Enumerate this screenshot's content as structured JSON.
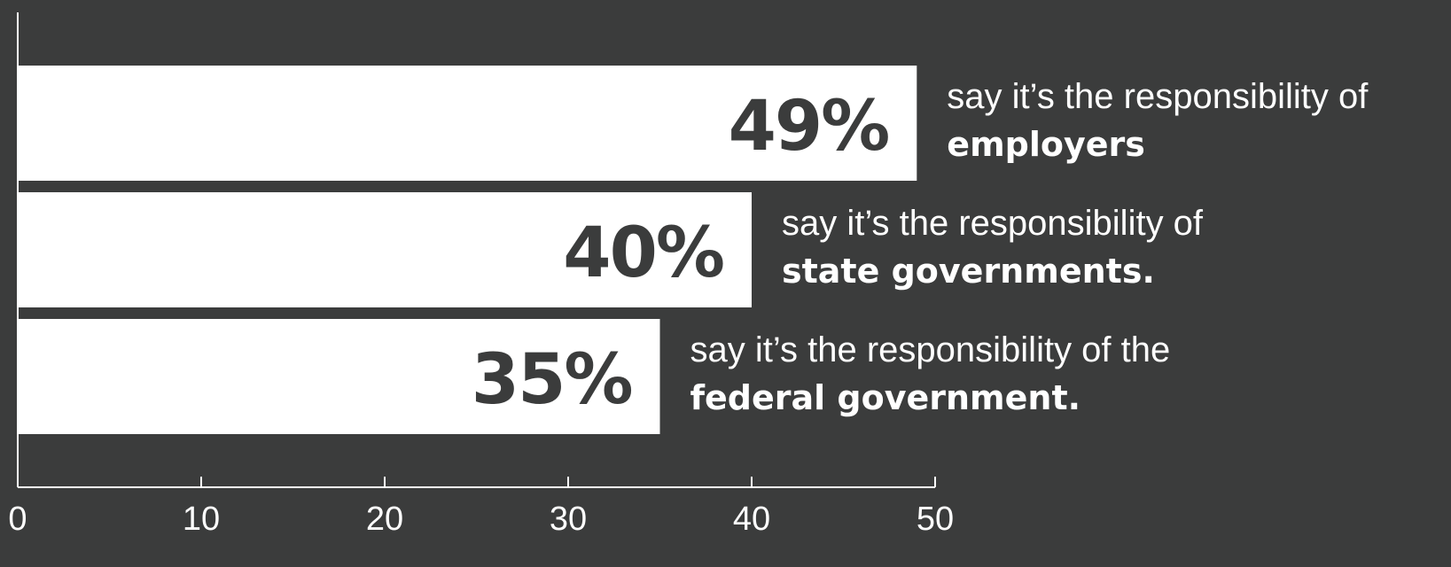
{
  "colors": {
    "background": "#3b3c3c",
    "bar": "#ffffff",
    "bar_label": "#3b3c3c",
    "text": "#ffffff",
    "axis": "#ffffff"
  },
  "chart_data": {
    "type": "bar",
    "orientation": "horizontal",
    "title": "",
    "xlabel": "",
    "ylabel": "",
    "xlim": [
      0,
      50
    ],
    "x_ticks": [
      0,
      10,
      20,
      30,
      40,
      50
    ],
    "grid": false,
    "legend": "none",
    "categories": [
      "employers",
      "state governments",
      "federal government"
    ],
    "values": [
      49,
      40,
      35
    ],
    "bar_labels": [
      "49%",
      "40%",
      "35%"
    ],
    "captions": [
      {
        "line1": "say it’s the responsibility of",
        "line2": "employers"
      },
      {
        "line1": "say it’s the responsibility of",
        "line2": "state governments."
      },
      {
        "line1": "say it’s the responsibility of the",
        "line2": "federal government."
      }
    ]
  }
}
